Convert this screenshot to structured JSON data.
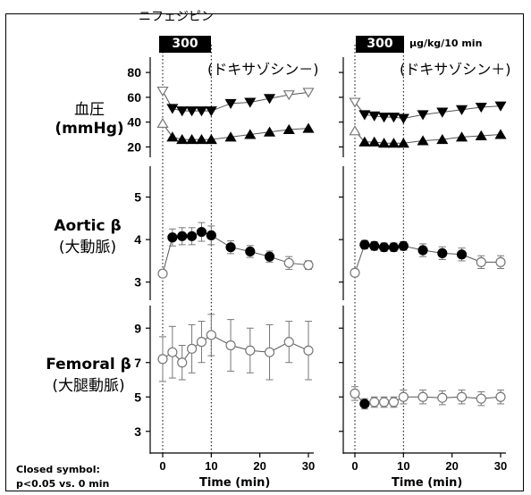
{
  "labels": {
    "drug": "ニフェジピン",
    "dose_left": "300",
    "dose_right": "300",
    "dose_unit": "μg/kg/10 min",
    "condition_left": "(ドキサゾシン－)",
    "condition_right": "(ドキサゾシン＋)",
    "bp_label_ja": "血圧",
    "bp_label_unit": "(mmHg)",
    "aortic_label": "Aortic β",
    "aortic_label_ja": "(大動脈)",
    "femoral_label": "Femoral β",
    "femoral_label_ja": "(大腿動脈)",
    "footnote_line1": "Closed symbol:",
    "footnote_line2": "p<0.05 vs. 0 min",
    "xlabel_left": "Time (min)",
    "xlabel_right": "Time (min)"
  },
  "chart_data": {
    "type": "line",
    "x_ticks": [
      0,
      10,
      20,
      30
    ],
    "x_tick_labels": [
      "0",
      "10",
      "20",
      "30"
    ],
    "xlim": [
      0,
      30
    ],
    "xlabel": "Time (min)",
    "rows": [
      {
        "id": "bp",
        "ylim": [
          16,
          88
        ],
        "y_ticks": [
          20,
          40,
          60,
          80
        ],
        "y_tick_labels": [
          "20",
          "40",
          "60",
          "80"
        ]
      },
      {
        "id": "aortic",
        "ylim": [
          2.7,
          5.6
        ],
        "y_ticks": [
          3,
          4,
          5
        ],
        "y_tick_labels": [
          "3",
          "4",
          "5"
        ]
      },
      {
        "id": "femoral",
        "ylim": [
          2.0,
          10.0
        ],
        "y_ticks": [
          3,
          5,
          7,
          9
        ],
        "y_tick_labels": [
          "3",
          "5",
          "7",
          "9"
        ]
      }
    ],
    "panels": [
      {
        "row": "bp",
        "col": "left",
        "series": [
          {
            "name": "systolic",
            "marker": "triangle-down",
            "x": [
              0,
              2,
              4,
              6,
              8,
              10,
              14,
              18,
              22,
              26,
              30
            ],
            "y": [
              65,
              51,
              49,
              49,
              49,
              49,
              55,
              56,
              59,
              62,
              64
            ],
            "filled": [
              false,
              true,
              true,
              true,
              true,
              true,
              true,
              true,
              true,
              false,
              false
            ],
            "err": [
              0,
              0,
              0,
              0,
              0,
              0,
              0,
              0,
              0,
              0,
              0
            ]
          },
          {
            "name": "diastolic",
            "marker": "triangle-up",
            "x": [
              0,
              2,
              4,
              6,
              8,
              10,
              14,
              18,
              22,
              26,
              30
            ],
            "y": [
              39,
              28,
              26,
              26,
              26,
              26,
              28,
              30,
              32,
              34,
              35
            ],
            "filled": [
              false,
              true,
              true,
              true,
              true,
              true,
              true,
              true,
              true,
              true,
              true
            ],
            "err": [
              0,
              0,
              0,
              0,
              0,
              0,
              0,
              0,
              0,
              0,
              0
            ]
          }
        ]
      },
      {
        "row": "bp",
        "col": "right",
        "series": [
          {
            "name": "systolic",
            "marker": "triangle-down",
            "x": [
              0,
              2,
              4,
              6,
              8,
              10,
              14,
              18,
              22,
              26,
              30
            ],
            "y": [
              56,
              46,
              45,
              44,
              44,
              43,
              46,
              48,
              50,
              52,
              53
            ],
            "filled": [
              false,
              true,
              true,
              true,
              true,
              true,
              true,
              true,
              true,
              true,
              true
            ],
            "err": [
              0,
              0,
              0,
              0,
              0,
              0,
              0,
              0,
              0,
              0,
              0
            ]
          },
          {
            "name": "diastolic",
            "marker": "triangle-up",
            "x": [
              0,
              2,
              4,
              6,
              8,
              10,
              14,
              18,
              22,
              26,
              30
            ],
            "y": [
              33,
              24,
              24,
              23,
              23,
              23,
              25,
              26,
              28,
              29,
              30
            ],
            "filled": [
              false,
              true,
              true,
              true,
              true,
              true,
              true,
              true,
              true,
              true,
              true
            ],
            "err": [
              0,
              0,
              0,
              0,
              0,
              0,
              0,
              0,
              0,
              0,
              0
            ]
          }
        ]
      },
      {
        "row": "aortic",
        "col": "left",
        "series": [
          {
            "name": "aortic",
            "marker": "circle",
            "x": [
              0,
              2,
              4,
              6,
              8,
              10,
              14,
              18,
              22,
              26,
              30
            ],
            "y": [
              3.2,
              4.05,
              4.08,
              4.08,
              4.18,
              4.1,
              3.82,
              3.72,
              3.6,
              3.45,
              3.4
            ],
            "filled": [
              false,
              true,
              true,
              true,
              true,
              true,
              true,
              true,
              true,
              false,
              false
            ],
            "err": [
              0.08,
              0.2,
              0.2,
              0.2,
              0.22,
              0.22,
              0.15,
              0.14,
              0.13,
              0.15,
              0.1
            ]
          }
        ]
      },
      {
        "row": "aortic",
        "col": "right",
        "series": [
          {
            "name": "aortic",
            "marker": "circle",
            "x": [
              0,
              2,
              4,
              6,
              8,
              10,
              14,
              18,
              22,
              26,
              30
            ],
            "y": [
              3.22,
              3.88,
              3.85,
              3.82,
              3.82,
              3.85,
              3.75,
              3.68,
              3.65,
              3.47,
              3.47
            ],
            "filled": [
              false,
              true,
              true,
              true,
              true,
              true,
              true,
              true,
              true,
              false,
              false
            ],
            "err": [
              0.08,
              0.1,
              0.1,
              0.1,
              0.1,
              0.1,
              0.15,
              0.15,
              0.15,
              0.15,
              0.15
            ]
          }
        ]
      },
      {
        "row": "femoral",
        "col": "left",
        "series": [
          {
            "name": "femoral",
            "marker": "circle",
            "x": [
              0,
              2,
              4,
              6,
              8,
              10,
              14,
              18,
              22,
              26,
              30
            ],
            "y": [
              7.2,
              7.6,
              7.0,
              7.8,
              8.2,
              8.6,
              8.0,
              7.7,
              7.6,
              8.2,
              7.7
            ],
            "filled": [
              false,
              false,
              false,
              false,
              false,
              false,
              false,
              false,
              false,
              false,
              false
            ],
            "err": [
              1.3,
              1.5,
              1.0,
              1.4,
              1.2,
              1.2,
              1.5,
              1.3,
              1.6,
              1.2,
              1.7
            ]
          }
        ]
      },
      {
        "row": "femoral",
        "col": "right",
        "series": [
          {
            "name": "femoral",
            "marker": "circle",
            "x": [
              0,
              2,
              4,
              6,
              8,
              10,
              14,
              18,
              22,
              26,
              30
            ],
            "y": [
              5.2,
              4.6,
              4.7,
              4.7,
              4.7,
              5.0,
              5.0,
              4.95,
              5.0,
              4.9,
              5.0
            ],
            "filled": [
              false,
              true,
              false,
              false,
              false,
              false,
              false,
              false,
              false,
              false,
              false
            ],
            "err": [
              0.4,
              0.3,
              0.3,
              0.3,
              0.3,
              0.4,
              0.4,
              0.4,
              0.4,
              0.4,
              0.4
            ]
          }
        ]
      }
    ],
    "dose_period": [
      0,
      10
    ]
  }
}
